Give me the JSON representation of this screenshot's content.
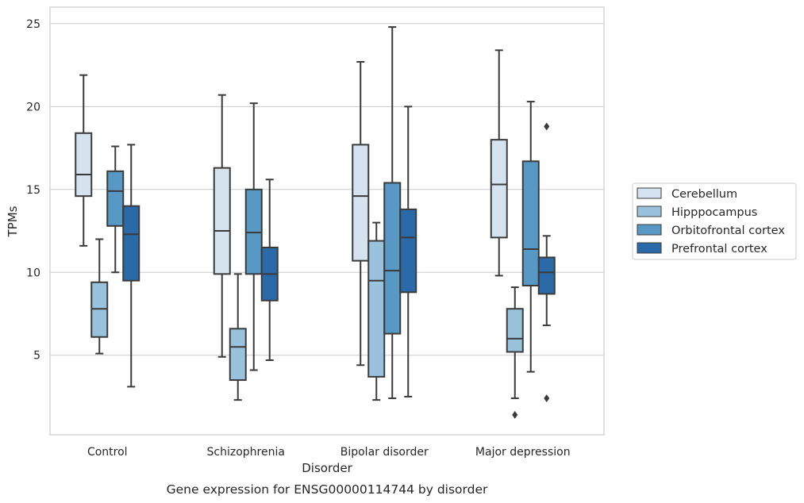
{
  "chart_data": {
    "type": "box",
    "caption": "Gene expression for ENSG00000114744 by disorder",
    "xlabel": "Disorder",
    "ylabel": "TPMs",
    "ylim": [
      0.2,
      26
    ],
    "yticks": [
      5,
      10,
      15,
      20,
      25
    ],
    "grid": "horizontal",
    "legend_position": "right",
    "categories": [
      "Control",
      "Schizophrenia",
      "Bipolar disorder",
      "Major depression"
    ],
    "series": [
      {
        "name": "Cerebellum",
        "color": "#d5e3f1",
        "boxes": [
          {
            "whislo": 11.6,
            "q1": 14.6,
            "med": 15.9,
            "q3": 18.4,
            "whishi": 21.9,
            "fliers": []
          },
          {
            "whislo": 4.9,
            "q1": 9.9,
            "med": 12.5,
            "q3": 16.3,
            "whishi": 20.7,
            "fliers": []
          },
          {
            "whislo": 4.4,
            "q1": 10.7,
            "med": 14.6,
            "q3": 17.7,
            "whishi": 22.7,
            "fliers": []
          },
          {
            "whislo": 9.8,
            "q1": 12.1,
            "med": 15.3,
            "q3": 18.0,
            "whishi": 23.4,
            "fliers": []
          }
        ]
      },
      {
        "name": "Hipppocampus",
        "color": "#99c2dc",
        "boxes": [
          {
            "whislo": 5.1,
            "q1": 6.1,
            "med": 7.8,
            "q3": 9.4,
            "whishi": 12.0,
            "fliers": []
          },
          {
            "whislo": 2.3,
            "q1": 3.5,
            "med": 5.5,
            "q3": 6.6,
            "whishi": 9.9,
            "fliers": []
          },
          {
            "whislo": 2.3,
            "q1": 3.7,
            "med": 9.5,
            "q3": 11.9,
            "whishi": 13.0,
            "fliers": []
          },
          {
            "whislo": 2.4,
            "q1": 5.2,
            "med": 6.0,
            "q3": 7.8,
            "whishi": 9.1,
            "fliers": [
              1.4
            ]
          }
        ]
      },
      {
        "name": "Orbitofrontal cortex",
        "color": "#5898c5",
        "boxes": [
          {
            "whislo": 10.0,
            "q1": 12.8,
            "med": 14.9,
            "q3": 16.1,
            "whishi": 17.6,
            "fliers": []
          },
          {
            "whislo": 4.1,
            "q1": 9.9,
            "med": 12.4,
            "q3": 15.0,
            "whishi": 20.2,
            "fliers": []
          },
          {
            "whislo": 2.4,
            "q1": 6.3,
            "med": 10.1,
            "q3": 15.4,
            "whishi": 24.8,
            "fliers": []
          },
          {
            "whislo": 4.0,
            "q1": 9.2,
            "med": 11.4,
            "q3": 16.7,
            "whishi": 20.3,
            "fliers": []
          }
        ]
      },
      {
        "name": "Prefrontal cortex",
        "color": "#2b6aa8",
        "boxes": [
          {
            "whislo": 3.1,
            "q1": 9.5,
            "med": 12.3,
            "q3": 14.0,
            "whishi": 17.7,
            "fliers": []
          },
          {
            "whislo": 4.7,
            "q1": 8.3,
            "med": 9.9,
            "q3": 11.5,
            "whishi": 15.6,
            "fliers": []
          },
          {
            "whislo": 2.5,
            "q1": 8.8,
            "med": 12.1,
            "q3": 13.8,
            "whishi": 20.0,
            "fliers": []
          },
          {
            "whislo": 6.8,
            "q1": 8.7,
            "med": 10.0,
            "q3": 10.9,
            "whishi": 12.2,
            "fliers": [
              18.8,
              2.4
            ]
          }
        ]
      }
    ]
  }
}
